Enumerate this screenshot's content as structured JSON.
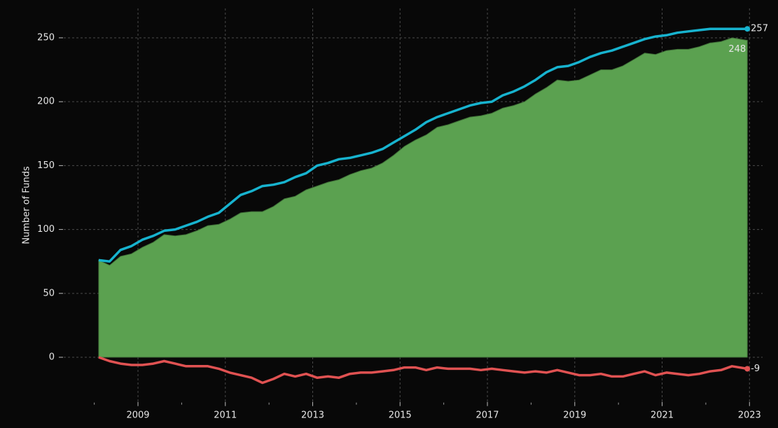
{
  "chart_data": {
    "type": "line",
    "ylabel": "Number of Funds",
    "x": [
      2008.1,
      2008.35,
      2008.6,
      2008.85,
      2009.1,
      2009.35,
      2009.6,
      2009.85,
      2010.1,
      2010.35,
      2010.6,
      2010.85,
      2011.1,
      2011.35,
      2011.6,
      2011.85,
      2012.1,
      2012.35,
      2012.6,
      2012.85,
      2013.1,
      2013.35,
      2013.6,
      2013.85,
      2014.1,
      2014.35,
      2014.6,
      2014.85,
      2015.1,
      2015.35,
      2015.6,
      2015.85,
      2016.1,
      2016.35,
      2016.6,
      2016.85,
      2017.1,
      2017.35,
      2017.6,
      2017.85,
      2018.1,
      2018.35,
      2018.6,
      2018.85,
      2019.1,
      2019.35,
      2019.6,
      2019.85,
      2020.1,
      2020.35,
      2020.6,
      2020.85,
      2021.1,
      2021.35,
      2021.6,
      2021.85,
      2022.1,
      2022.35,
      2022.6,
      2022.95
    ],
    "series": [
      {
        "color": "#5ba150",
        "area": true,
        "values": [
          76,
          72,
          79,
          81,
          86,
          90,
          96,
          95,
          96,
          99,
          103,
          104,
          108,
          113,
          114,
          114,
          118,
          124,
          126,
          131,
          134,
          137,
          139,
          143,
          146,
          148,
          152,
          158,
          165,
          170,
          174,
          180,
          182,
          185,
          188,
          189,
          191,
          195,
          197,
          200,
          206,
          211,
          217,
          216,
          217,
          221,
          225,
          225,
          228,
          233,
          238,
          237,
          240,
          241,
          241,
          243,
          246,
          247,
          250,
          248
        ]
      },
      {
        "color": "#17b3cf",
        "area": false,
        "values": [
          76,
          75,
          84,
          87,
          92,
          95,
          99,
          100,
          103,
          106,
          110,
          113,
          120,
          127,
          130,
          134,
          135,
          137,
          141,
          144,
          150,
          152,
          155,
          156,
          158,
          160,
          163,
          168,
          173,
          178,
          184,
          188,
          191,
          194,
          197,
          199,
          200,
          205,
          208,
          212,
          217,
          223,
          227,
          228,
          231,
          235,
          238,
          240,
          243,
          246,
          249,
          251,
          252,
          254,
          255,
          256,
          257,
          257,
          257,
          257
        ]
      },
      {
        "color": "#e05252",
        "area": false,
        "values": [
          0,
          -3,
          -5,
          -6,
          -6,
          -5,
          -3,
          -5,
          -7,
          -7,
          -7,
          -9,
          -12,
          -14,
          -16,
          -20,
          -17,
          -13,
          -15,
          -13,
          -16,
          -15,
          -16,
          -13,
          -12,
          -12,
          -11,
          -10,
          -8,
          -8,
          -10,
          -8,
          -9,
          -9,
          -9,
          -10,
          -9,
          -10,
          -11,
          -12,
          -11,
          -12,
          -10,
          -12,
          -14,
          -14,
          -13,
          -15,
          -15,
          -13,
          -11,
          -14,
          -12,
          -13,
          -14,
          -13,
          -11,
          -10,
          -7,
          -9
        ]
      }
    ],
    "xlim": [
      2007.3,
      2023.3
    ],
    "xticks": [
      2009,
      2011,
      2013,
      2015,
      2017,
      2019,
      2021,
      2023
    ],
    "xminor_ticks": [
      2008,
      2010,
      2012,
      2014,
      2016,
      2018,
      2020,
      2022
    ],
    "ylim": [
      -36,
      273
    ],
    "yticks": [
      0,
      50,
      100,
      150,
      200,
      250
    ],
    "grid": true
  }
}
